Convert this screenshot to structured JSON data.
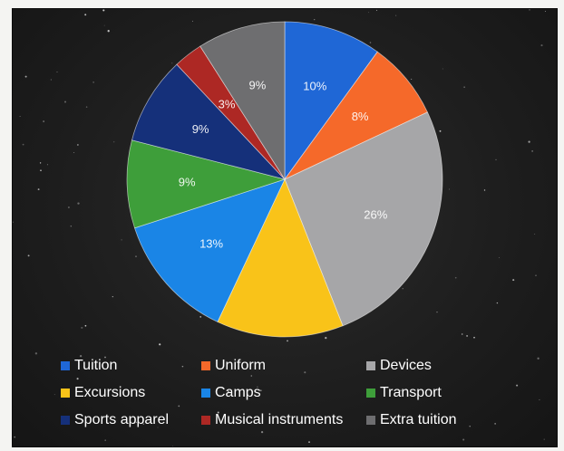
{
  "chart_data": {
    "type": "pie",
    "title": "",
    "categories": [
      "Tuition",
      "Uniform",
      "Devices",
      "Excursions",
      "Camps",
      "Transport",
      "Sports apparel",
      "Musical instruments",
      "Extra tuition"
    ],
    "values": [
      10,
      8,
      26,
      13,
      13,
      9,
      9,
      3,
      9
    ],
    "value_labels": [
      "10%",
      "8%",
      "26%",
      "",
      "13%",
      "9%",
      "9%",
      "3%",
      "9%"
    ],
    "colors": [
      "#1f67d6",
      "#f5692a",
      "#a6a6a8",
      "#f9c319",
      "#1a85e6",
      "#3e9e3a",
      "#15307a",
      "#ad2824",
      "#6e6e70"
    ],
    "legend_position": "bottom",
    "legend": [
      {
        "label": "Tuition",
        "color": "#1f67d6"
      },
      {
        "label": "Uniform",
        "color": "#f5692a"
      },
      {
        "label": "Devices",
        "color": "#a6a6a8"
      },
      {
        "label": "Excursions",
        "color": "#f9c319"
      },
      {
        "label": "Camps",
        "color": "#1a85e6"
      },
      {
        "label": "Transport",
        "color": "#3e9e3a"
      },
      {
        "label": "Sports apparel",
        "color": "#15307a"
      },
      {
        "label": "Musical instruments",
        "color": "#ad2824"
      },
      {
        "label": "Extra tuition",
        "color": "#6e6e70"
      }
    ]
  }
}
